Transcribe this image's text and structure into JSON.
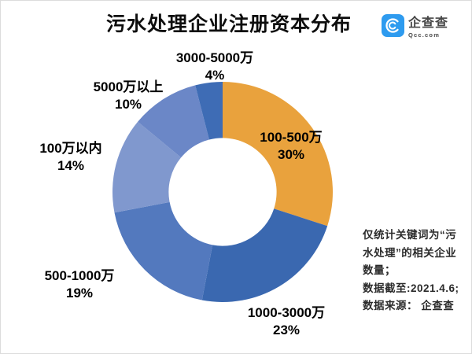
{
  "title": "污水处理企业注册资本分布",
  "logo": {
    "name": "企查查",
    "domain": "Qcc.com",
    "brand_color": "#2E9BEF"
  },
  "chart_data": {
    "type": "pie",
    "subtype": "donut",
    "title": "污水处理企业注册资本分布",
    "unit": "percent",
    "start_angle_deg": 0,
    "direction": "clockwise",
    "inner_radius_ratio": 0.49,
    "categories": [
      "100-500万",
      "1000-3000万",
      "500-1000万",
      "100万以内",
      "5000万以上",
      "3000-5000万"
    ],
    "values": [
      30,
      23,
      19,
      14,
      10,
      4
    ],
    "slices": [
      {
        "label": "100-500万",
        "value": 30,
        "percent_label": "30%",
        "color": "#E9A23D"
      },
      {
        "label": "1000-3000万",
        "value": 23,
        "percent_label": "23%",
        "color": "#3A68B0"
      },
      {
        "label": "500-1000万",
        "value": 19,
        "percent_label": "19%",
        "color": "#5379BE"
      },
      {
        "label": "100万以内",
        "value": 14,
        "percent_label": "14%",
        "color": "#8098CE"
      },
      {
        "label": "5000万以上",
        "value": 10,
        "percent_label": "10%",
        "color": "#6B87C7"
      },
      {
        "label": "3000-5000万",
        "value": 4,
        "percent_label": "4%",
        "color": "#3E6CB5"
      }
    ]
  },
  "note": {
    "lines": [
      "仅统计关键词为“污",
      "水处理”的相关企业",
      "数量；",
      "数据截至:2021.4.6;",
      "数据来源： 企查查"
    ]
  }
}
